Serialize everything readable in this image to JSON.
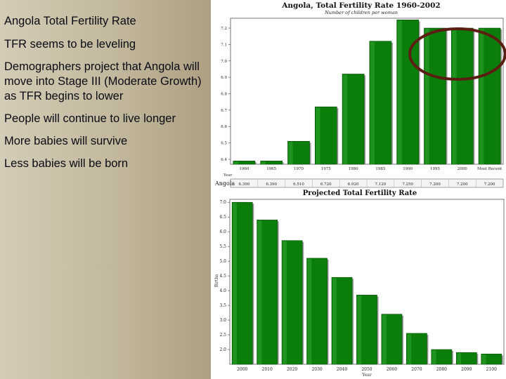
{
  "slide": {
    "bullets": [
      "Angola Total Fertility Rate",
      "TFR seems to be leveling",
      "Demographers project that Angola will move into Stage III (Moderate Growth) as TFR begins to lower",
      "People will continue to live longer",
      "More babies will survive",
      "Less babies will be born"
    ]
  },
  "colors": {
    "bar_fill": "#0b7d0b",
    "bar_dark": "#064f06",
    "highlight_ellipse": "#5a1f12"
  },
  "chart_data": [
    {
      "type": "bar",
      "title": "Angola, Total Fertility Rate 1960-2002",
      "subtitle": "Number of children per woman",
      "xlabel": "Year",
      "ylabel": "",
      "categories": [
        "1960",
        "1965",
        "1970",
        "1975",
        "1980",
        "1985",
        "1990",
        "1995",
        "2000",
        "Most Recent"
      ],
      "tick_labels": [
        "1960",
        "1965",
        "1970",
        "1975",
        "1980",
        "1985",
        "1990",
        "1995",
        "2000",
        "Most Recent"
      ],
      "series": [
        {
          "name": "Angola",
          "values": [
            6.39,
            6.39,
            6.51,
            6.72,
            6.92,
            7.12,
            7.25,
            7.2,
            7.2,
            7.2
          ],
          "value_labels": [
            "6.390",
            "6.390",
            "6.510",
            "6.720",
            "6.920",
            "7.120",
            "7.250",
            "7.200",
            "7.200",
            "7.200"
          ]
        }
      ],
      "yticks": [
        6.4,
        6.5,
        6.6,
        6.7,
        6.8,
        6.9,
        7.0,
        7.1,
        7.2
      ],
      "ytick_labels": [
        "6.4",
        "6.5",
        "6.6",
        "6.7",
        "6.8",
        "6.9",
        "7.0",
        "7.1",
        "7.2"
      ],
      "ylim": [
        6.37,
        7.26
      ],
      "grid": false,
      "annotations": [
        "ellipse around last three bars"
      ]
    },
    {
      "type": "bar",
      "title": "Projected Total Fertility Rate",
      "xlabel": "Year",
      "ylabel": "Births",
      "categories": [
        "2000",
        "2010",
        "2020",
        "2030",
        "2040",
        "2050",
        "2060",
        "2070",
        "2080",
        "2090",
        "2100"
      ],
      "tick_labels": [
        "2000",
        "2010",
        "2020",
        "2030",
        "2040",
        "2050",
        "2060",
        "2070",
        "2080",
        "2090",
        "2100"
      ],
      "values": [
        7.0,
        6.4,
        5.7,
        5.1,
        4.45,
        3.85,
        3.2,
        2.55,
        2.0,
        1.9,
        1.85
      ],
      "yticks": [
        2.0,
        2.5,
        3.0,
        3.5,
        4.0,
        4.5,
        5.0,
        5.5,
        6.0,
        6.5,
        7.0
      ],
      "ytick_labels": [
        "2.0",
        "2.5",
        "3.0",
        "3.5",
        "4.0",
        "4.5",
        "5.0",
        "5.5",
        "6.0",
        "6.5",
        "7.0"
      ],
      "ylim": [
        1.5,
        7.1
      ],
      "grid": false
    }
  ]
}
